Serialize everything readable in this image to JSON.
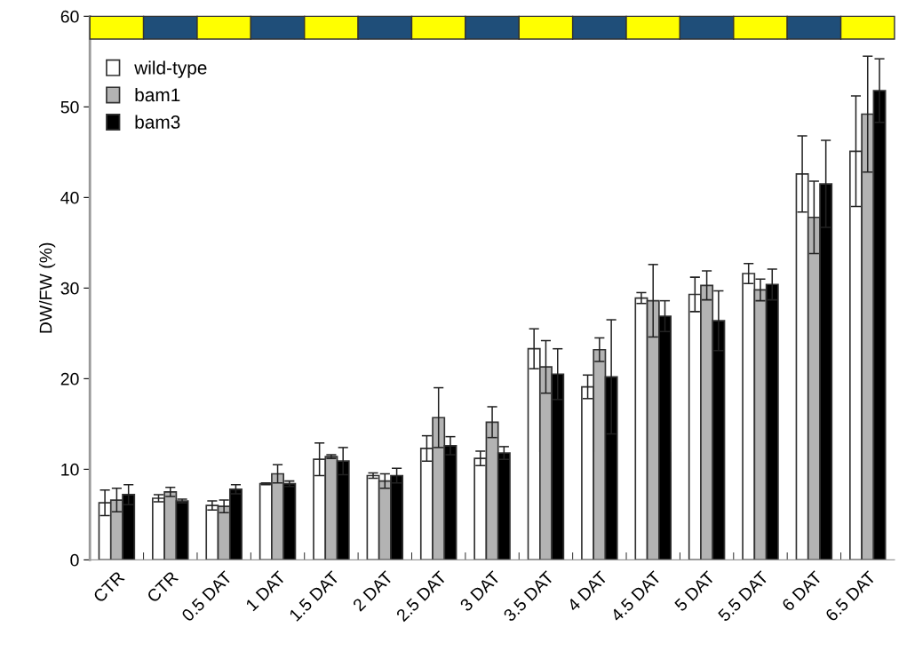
{
  "chart_data": {
    "type": "bar",
    "ylabel": "DW/FW (%)",
    "categories": [
      "CTR",
      "CTR",
      "0.5 DAT",
      "1 DAT",
      "1.5 DAT",
      "2 DAT",
      "2.5 DAT",
      "3 DAT",
      "3.5 DAT",
      "4 DAT",
      "4.5 DAT",
      "5 DAT",
      "5.5 DAT",
      "6 DAT",
      "6.5 DAT"
    ],
    "series": [
      {
        "name": "wild-type",
        "color": "#ffffff",
        "values": [
          6.3,
          6.8,
          6.0,
          8.4,
          11.1,
          9.3,
          12.3,
          11.2,
          23.3,
          19.1,
          28.9,
          29.3,
          31.6,
          42.6,
          45.1
        ],
        "errors": [
          1.4,
          0.4,
          0.5,
          0.1,
          1.8,
          0.3,
          1.4,
          0.8,
          2.2,
          1.3,
          0.6,
          1.9,
          1.1,
          4.2,
          6.1
        ]
      },
      {
        "name": "bam1",
        "color": "#b3b3b3",
        "values": [
          6.6,
          7.5,
          5.9,
          9.5,
          11.4,
          8.7,
          15.7,
          15.2,
          21.3,
          23.2,
          28.6,
          30.3,
          29.8,
          37.8,
          49.2
        ],
        "errors": [
          1.3,
          0.5,
          0.7,
          1.0,
          0.2,
          0.8,
          3.3,
          1.7,
          2.9,
          1.3,
          4.0,
          1.6,
          1.2,
          4.0,
          6.4
        ]
      },
      {
        "name": "bam3",
        "color": "#000000",
        "values": [
          7.2,
          6.5,
          7.8,
          8.4,
          10.9,
          9.3,
          12.6,
          11.8,
          20.5,
          20.2,
          26.9,
          26.4,
          30.4,
          41.5,
          51.8
        ],
        "errors": [
          1.1,
          0.2,
          0.5,
          0.3,
          1.5,
          0.8,
          1.0,
          0.7,
          2.8,
          6.3,
          1.7,
          3.3,
          1.7,
          4.8,
          3.5
        ]
      }
    ],
    "ylim": [
      0,
      60
    ],
    "yticks": [
      0,
      10,
      20,
      30,
      40,
      50,
      60
    ],
    "grid": false,
    "legend": "top left"
  }
}
